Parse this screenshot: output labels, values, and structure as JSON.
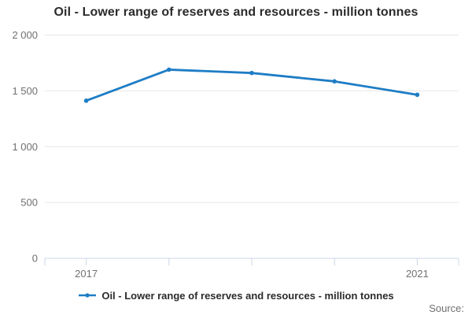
{
  "title": "Oil - Lower range of reserves and resources - million tonnes",
  "legend": {
    "label": "Oil - Lower range of reserves and resources - million tonnes"
  },
  "source_label": "Source:",
  "colors": {
    "line": "#1e7dc5",
    "grid": "#e6e6e6",
    "axis": "#ccd6eb",
    "title_text": "#2b2b2b",
    "tick_label": "#707070"
  },
  "chart_data": {
    "type": "line",
    "title": "Oil - Lower range of reserves and resources - million tonnes",
    "x": [
      2017,
      2018,
      2019,
      2020,
      2021
    ],
    "xtick_labels": [
      "2017",
      "",
      "",
      "",
      "2021"
    ],
    "series": [
      {
        "name": "Oil - Lower range of reserves and resources - million tonnes",
        "values": [
          1412,
          1690,
          1660,
          1585,
          1465
        ]
      }
    ],
    "xlabel": "",
    "ylabel": "",
    "ylim": [
      0,
      2000
    ],
    "yticks": [
      0,
      500,
      1000,
      1500,
      2000
    ],
    "ytick_labels": [
      "0",
      "500",
      "1 000",
      "1 500",
      "2 000"
    ],
    "grid": true,
    "legend_position": "bottom"
  }
}
